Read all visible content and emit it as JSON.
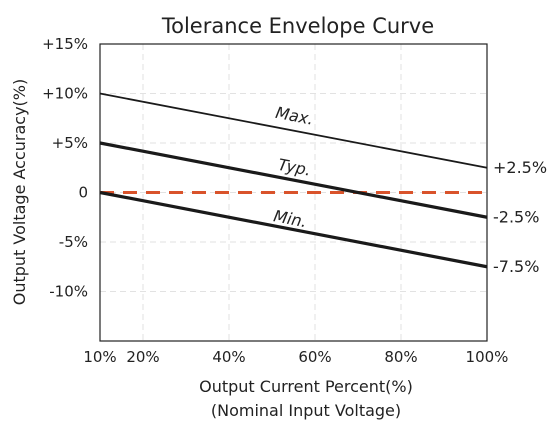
{
  "chart_data": {
    "type": "line",
    "title": "Tolerance Envelope  Curve",
    "xlabel": "Output Current Percent(%)",
    "xlabel_sub": "(Nominal Input Voltage)",
    "ylabel": "Output Voltage Accuracy(%)",
    "xlim": [
      10,
      100
    ],
    "ylim": [
      -15,
      15
    ],
    "grid": true,
    "x_ticks": [
      {
        "value": 10,
        "label": "10%"
      },
      {
        "value": 20,
        "label": "20%"
      },
      {
        "value": 40,
        "label": "40%"
      },
      {
        "value": 60,
        "label": "60%"
      },
      {
        "value": 80,
        "label": "80%"
      },
      {
        "value": 100,
        "label": "100%"
      }
    ],
    "y_ticks": [
      {
        "value": 15,
        "label": "+15%"
      },
      {
        "value": 10,
        "label": "+10%"
      },
      {
        "value": 5,
        "label": "+5%"
      },
      {
        "value": 0,
        "label": "0"
      },
      {
        "value": -5,
        "label": "-5%"
      },
      {
        "value": -10,
        "label": "-10%"
      }
    ],
    "series": [
      {
        "name": "Max.",
        "x": [
          10,
          100
        ],
        "values": [
          10,
          2.5
        ],
        "color": "#1a1a1a",
        "width": "thin",
        "end_label": "+2.5%",
        "label_at": [
          55,
          7.2
        ]
      },
      {
        "name": "Typ.",
        "x": [
          10,
          100
        ],
        "values": [
          5,
          -2.5
        ],
        "color": "#1a1a1a",
        "width": "thick",
        "end_label": "-2.5%",
        "label_at": [
          55,
          2.0
        ]
      },
      {
        "name": "Min.",
        "x": [
          10,
          100
        ],
        "values": [
          0,
          -7.5
        ],
        "color": "#1a1a1a",
        "width": "thick",
        "end_label": "-7.5%",
        "label_at": [
          54,
          -3.2
        ]
      }
    ],
    "reference_line": {
      "y": 0,
      "color": "#d9532b",
      "style": "dashed"
    }
  }
}
